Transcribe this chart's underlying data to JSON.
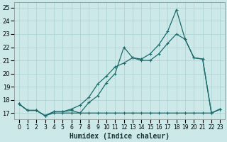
{
  "xlabel": "Humidex (Indice chaleur)",
  "ylabel": "",
  "xlim": [
    -0.5,
    23.5
  ],
  "ylim": [
    16.5,
    25.4
  ],
  "yticks": [
    17,
    18,
    19,
    20,
    21,
    22,
    23,
    24,
    25
  ],
  "xticks": [
    0,
    1,
    2,
    3,
    4,
    5,
    6,
    7,
    8,
    9,
    10,
    11,
    12,
    13,
    14,
    15,
    16,
    17,
    18,
    19,
    20,
    21,
    22,
    23
  ],
  "bg_color": "#cce8e8",
  "line_color": "#1a6b6b",
  "grid_color": "#aad0d0",
  "line1_x": [
    0,
    1,
    2,
    3,
    4,
    5,
    6,
    7,
    8,
    9,
    10,
    11,
    12,
    13,
    14,
    15,
    16,
    17,
    18,
    19,
    20,
    21,
    22,
    23
  ],
  "line1_y": [
    17.7,
    17.2,
    17.2,
    16.8,
    17.0,
    17.0,
    17.0,
    17.0,
    17.0,
    17.0,
    17.0,
    17.0,
    17.0,
    17.0,
    17.0,
    17.0,
    17.0,
    17.0,
    17.0,
    17.0,
    17.0,
    17.0,
    17.0,
    17.3
  ],
  "line2_x": [
    0,
    1,
    2,
    3,
    4,
    5,
    6,
    7,
    8,
    9,
    10,
    11,
    12,
    13,
    14,
    15,
    16,
    17,
    18,
    19,
    20,
    21,
    22,
    23
  ],
  "line2_y": [
    17.7,
    17.2,
    17.2,
    16.8,
    17.1,
    17.1,
    17.2,
    17.0,
    17.8,
    18.3,
    19.3,
    20.0,
    22.0,
    21.2,
    21.0,
    21.0,
    21.5,
    22.3,
    23.0,
    22.6,
    21.2,
    21.1,
    17.0,
    17.3
  ],
  "line3_x": [
    0,
    1,
    2,
    3,
    4,
    5,
    6,
    7,
    8,
    9,
    10,
    11,
    12,
    13,
    14,
    15,
    16,
    17,
    18,
    19,
    20,
    21,
    22,
    23
  ],
  "line3_y": [
    17.7,
    17.2,
    17.2,
    16.8,
    17.1,
    17.1,
    17.3,
    17.6,
    18.2,
    19.2,
    19.8,
    20.5,
    20.8,
    21.2,
    21.1,
    21.5,
    22.2,
    23.2,
    24.85,
    22.6,
    21.2,
    21.1,
    17.0,
    17.3
  ]
}
